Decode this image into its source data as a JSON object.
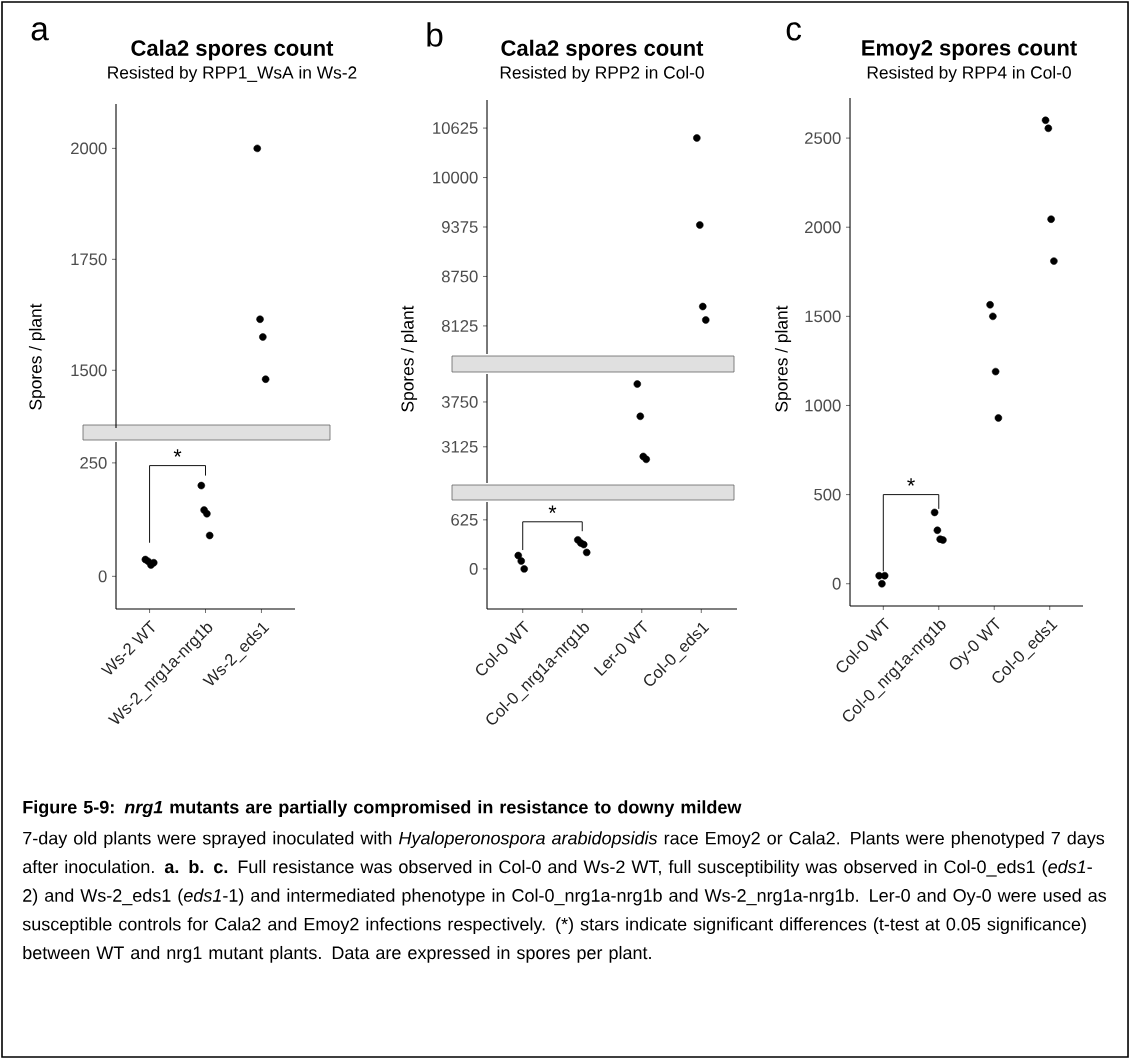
{
  "chart_data": [
    {
      "type": "scatter",
      "title": "Cala2 spores count",
      "subtitle": "Resisted by RPP1_WsA in Ws-2",
      "ylabel": "Spores / plant",
      "annotations": [
        "a"
      ],
      "categories": [
        "Ws-2 WT",
        "Ws-2_nrg1a-nrg1b",
        "Ws-2_eds1"
      ],
      "ylim": [
        1370,
        2100
      ],
      "yticks": [
        1500,
        1750,
        2000
      ],
      "tick_labels": "y",
      "marker": "circle",
      "series": [
        {
          "color": "#000000",
          "x": [
            "Ws-2_eds1",
            "Ws-2_eds1",
            "Ws-2_eds1",
            "Ws-2_eds1"
          ],
          "values": [
            2000,
            1615,
            1575,
            1480
          ]
        }
      ]
    },
    {
      "type": "scatter",
      "annotations": [
        "*"
      ],
      "categories": [
        "Ws-2 WT",
        "Ws-2_nrg1a-nrg1b",
        "Ws-2_eds1"
      ],
      "ylim": [
        -72,
        296
      ],
      "yticks": [
        0,
        250
      ],
      "marker": "circle",
      "series": [
        {
          "color": "#000000",
          "x": [
            "Ws-2 WT",
            "Ws-2 WT",
            "Ws-2 WT",
            "Ws-2 WT",
            "Ws-2_nrg1a-nrg1b",
            "Ws-2_nrg1a-nrg1b",
            "Ws-2_nrg1a-nrg1b",
            "Ws-2_nrg1a-nrg1b"
          ],
          "values": [
            37,
            33,
            25,
            30,
            200,
            146,
            138,
            90
          ]
        }
      ]
    },
    {
      "type": "scatter",
      "title": "Cala2 spores count",
      "subtitle": "Resisted by RPP2 in Col-0",
      "annotations": [
        "b"
      ],
      "categories": [
        "Col-0 WT",
        "Col-0_nrg1a-nrg1b",
        "Ler-0 WT",
        "Col-0_eds1"
      ],
      "ylim": [
        7770,
        10980
      ],
      "yticks": [
        8125,
        8750,
        9375,
        10000,
        10625
      ],
      "tick_labels": "y",
      "marker": "circle",
      "series": [
        {
          "color": "#000000",
          "x": [
            "Col-0_eds1",
            "Col-0_eds1",
            "Col-0_eds1",
            "Col-0_eds1"
          ],
          "values": [
            10500,
            9400,
            8370,
            8200
          ]
        }
      ]
    },
    {
      "type": "scatter",
      "ylabel": "Spores / plant",
      "categories": [
        "Col-0 WT",
        "Col-0_nrg1a-nrg1b",
        "Ler-0 WT",
        "Col-0_eds1"
      ],
      "ylim": [
        2620,
        4140
      ],
      "yticks": [
        3125,
        3750
      ],
      "tick_labels": "y",
      "marker": "circle",
      "series": [
        {
          "color": "#000000",
          "x": [
            "Ler-0 WT",
            "Ler-0 WT",
            "Ler-0 WT",
            "Ler-0 WT"
          ],
          "values": [
            4000,
            3550,
            2990,
            2950
          ]
        }
      ]
    },
    {
      "type": "scatter",
      "annotations": [
        "*"
      ],
      "categories": [
        "Col-0 WT",
        "Col-0_nrg1a-nrg1b",
        "Ler-0 WT",
        "Col-0_eds1"
      ],
      "ylim": [
        -511,
        852
      ],
      "yticks": [
        0,
        625
      ],
      "marker": "circle",
      "series": [
        {
          "color": "#000000",
          "x": [
            "Col-0 WT",
            "Col-0 WT",
            "Col-0 WT",
            "Col-0_nrg1a-nrg1b",
            "Col-0_nrg1a-nrg1b",
            "Col-0_nrg1a-nrg1b",
            "Col-0_nrg1a-nrg1b"
          ],
          "values": [
            170,
            100,
            0,
            370,
            330,
            310,
            210
          ]
        }
      ]
    },
    {
      "type": "scatter",
      "title": "Emoy2 spores count",
      "subtitle": "Resisted by RPP4 in Col-0",
      "ylabel": "Spores / plant",
      "annotations": [
        "c",
        "*",
        "Figure 5-9: *nrg1* mutants are partially compromised in resistance to downy mildew",
        "7-day old plants were sprayed inoculated with *Hyaloperonospora arabidopsidis* race Emoy2 or Cala2. Plants were phenotyped 7 days after inoculation. **a. b. c.** Full resistance was observed in Col-0 and Ws-2 WT, full susceptibility was observed in Col-0_eds1 (*eds1*-2) and Ws-2_eds1 (*eds1*-1) and intermediated phenotype in Col-0_nrg1a-nrg1b and Ws-2_nrg1a-nrg1b. Ler-0 and Oy-0 were used as susceptible controls for Cala2 and Emoy2 infections respectively. (*) stars indicate significant differences (t-test at 0.05 significance) between WT and nrg1 mutant plants. Data are expressed in spores per plant."
      ],
      "categories": [
        "Col-0 WT",
        "Col-0_nrg1a-nrg1b",
        "Oy-0 WT",
        "Col-0_eds1"
      ],
      "ylim": [
        -125,
        2725
      ],
      "yticks": [
        0,
        500,
        1000,
        1500,
        2000,
        2500
      ],
      "marker": "circle",
      "series": [
        {
          "color": "#000000",
          "x": [
            "Col-0 WT",
            "Col-0 WT",
            "Col-0 WT",
            "Col-0_nrg1a-nrg1b",
            "Col-0_nrg1a-nrg1b",
            "Col-0_nrg1a-nrg1b",
            "Col-0_nrg1a-nrg1b",
            "Oy-0 WT",
            "Oy-0 WT",
            "Oy-0 WT",
            "Oy-0 WT",
            "Col-0_eds1",
            "Col-0_eds1",
            "Col-0_eds1",
            "Col-0_eds1"
          ],
          "values": [
            45,
            0,
            45,
            400,
            300,
            250,
            245,
            1565,
            1500,
            1190,
            930,
            2600,
            2555,
            2045,
            1810
          ]
        }
      ]
    }
  ]
}
